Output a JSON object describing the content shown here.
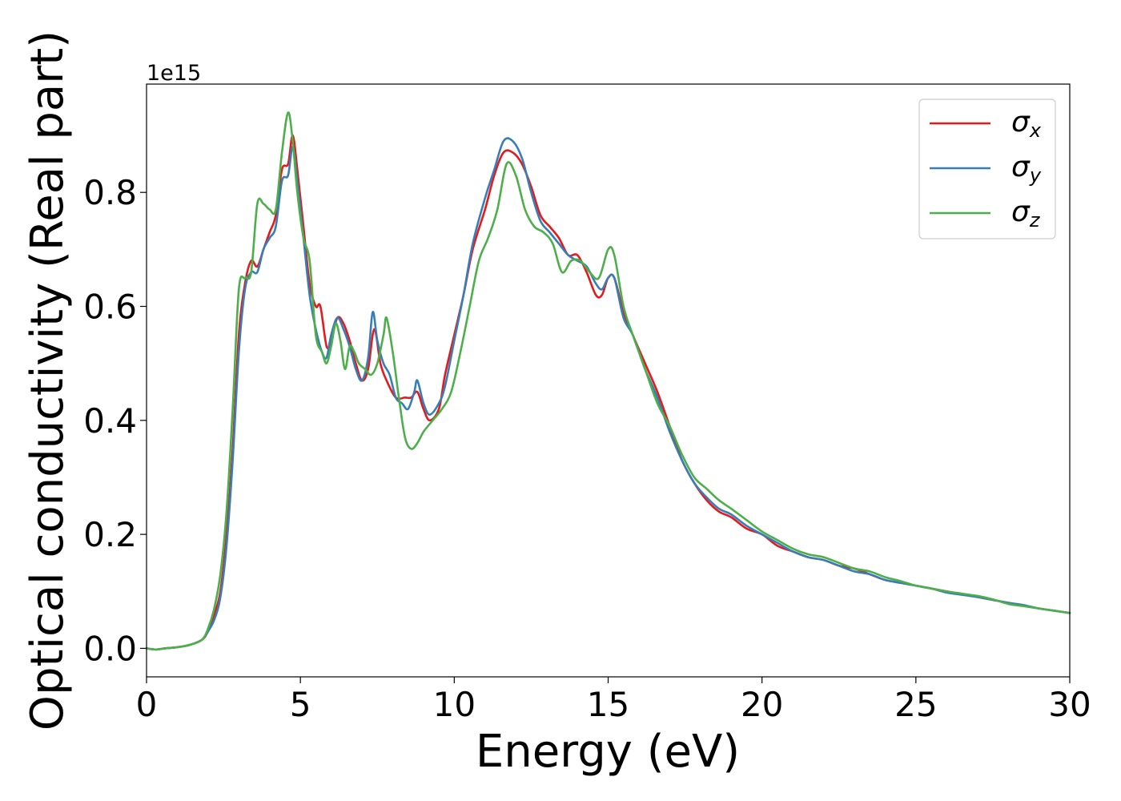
{
  "chart_data": {
    "type": "line",
    "title": "",
    "xlabel": "Energy (eV)",
    "ylabel": "Optical conductivity (Real part)",
    "offset_text": "1e15",
    "xlim": [
      0,
      30
    ],
    "ylim": [
      -0.05,
      0.99
    ],
    "x_ticks": [
      0,
      5,
      10,
      15,
      20,
      25,
      30
    ],
    "y_ticks": [
      0.0,
      0.2,
      0.4,
      0.6,
      0.8
    ],
    "x_tick_labels": [
      "0",
      "5",
      "10",
      "15",
      "20",
      "25",
      "30"
    ],
    "y_tick_labels": [
      "0.0",
      "0.2",
      "0.4",
      "0.6",
      "0.8"
    ],
    "grid": false,
    "legend_position": "top-right",
    "series": [
      {
        "name": "σx",
        "legend_symbol": "σ",
        "legend_sub": "x",
        "color": "#e41a1c",
        "points": [
          [
            0,
            0.0
          ],
          [
            0.3,
            -0.002
          ],
          [
            0.6,
            0.0
          ],
          [
            1,
            0.002
          ],
          [
            1.4,
            0.006
          ],
          [
            1.8,
            0.015
          ],
          [
            2.0,
            0.03
          ],
          [
            2.2,
            0.06
          ],
          [
            2.4,
            0.1
          ],
          [
            2.6,
            0.2
          ],
          [
            2.8,
            0.35
          ],
          [
            3.0,
            0.55
          ],
          [
            3.2,
            0.64
          ],
          [
            3.4,
            0.68
          ],
          [
            3.6,
            0.67
          ],
          [
            3.8,
            0.7
          ],
          [
            4.0,
            0.73
          ],
          [
            4.2,
            0.76
          ],
          [
            4.4,
            0.84
          ],
          [
            4.6,
            0.85
          ],
          [
            4.75,
            0.9
          ],
          [
            4.9,
            0.84
          ],
          [
            5.1,
            0.74
          ],
          [
            5.3,
            0.64
          ],
          [
            5.5,
            0.6
          ],
          [
            5.65,
            0.6
          ],
          [
            5.85,
            0.53
          ],
          [
            6.0,
            0.54
          ],
          [
            6.2,
            0.58
          ],
          [
            6.4,
            0.57
          ],
          [
            6.6,
            0.54
          ],
          [
            6.8,
            0.5
          ],
          [
            7.0,
            0.47
          ],
          [
            7.2,
            0.49
          ],
          [
            7.4,
            0.56
          ],
          [
            7.6,
            0.5
          ],
          [
            7.8,
            0.47
          ],
          [
            8.1,
            0.44
          ],
          [
            8.4,
            0.44
          ],
          [
            8.6,
            0.44
          ],
          [
            8.8,
            0.45
          ],
          [
            9.0,
            0.42
          ],
          [
            9.2,
            0.4
          ],
          [
            9.5,
            0.42
          ],
          [
            9.7,
            0.48
          ],
          [
            10.0,
            0.55
          ],
          [
            10.3,
            0.62
          ],
          [
            10.6,
            0.7
          ],
          [
            11.0,
            0.77
          ],
          [
            11.3,
            0.83
          ],
          [
            11.6,
            0.87
          ],
          [
            11.9,
            0.87
          ],
          [
            12.2,
            0.85
          ],
          [
            12.5,
            0.81
          ],
          [
            12.8,
            0.76
          ],
          [
            13.1,
            0.74
          ],
          [
            13.4,
            0.72
          ],
          [
            13.7,
            0.69
          ],
          [
            14.0,
            0.69
          ],
          [
            14.3,
            0.66
          ],
          [
            14.6,
            0.62
          ],
          [
            14.8,
            0.62
          ],
          [
            15.0,
            0.65
          ],
          [
            15.2,
            0.65
          ],
          [
            15.5,
            0.59
          ],
          [
            15.8,
            0.55
          ],
          [
            16.2,
            0.5
          ],
          [
            16.6,
            0.45
          ],
          [
            17.0,
            0.39
          ],
          [
            17.4,
            0.33
          ],
          [
            17.8,
            0.29
          ],
          [
            18.2,
            0.26
          ],
          [
            18.6,
            0.24
          ],
          [
            19.0,
            0.23
          ],
          [
            19.5,
            0.21
          ],
          [
            20.0,
            0.2
          ],
          [
            20.5,
            0.18
          ],
          [
            21.0,
            0.17
          ],
          [
            21.5,
            0.16
          ],
          [
            22.0,
            0.155
          ],
          [
            22.5,
            0.145
          ],
          [
            23.0,
            0.14
          ],
          [
            23.5,
            0.13
          ],
          [
            24.0,
            0.12
          ],
          [
            24.5,
            0.115
          ],
          [
            25.0,
            0.11
          ],
          [
            25.5,
            0.105
          ],
          [
            26.0,
            0.1
          ],
          [
            26.5,
            0.095
          ],
          [
            27.0,
            0.09
          ],
          [
            27.5,
            0.085
          ],
          [
            28.0,
            0.08
          ],
          [
            28.5,
            0.075
          ],
          [
            29.0,
            0.07
          ],
          [
            29.5,
            0.066
          ],
          [
            30.0,
            0.062
          ]
        ]
      },
      {
        "name": "σy",
        "legend_symbol": "σ",
        "legend_sub": "y",
        "color": "#377eb8",
        "points": [
          [
            0,
            0.0
          ],
          [
            0.3,
            -0.002
          ],
          [
            0.6,
            0.0
          ],
          [
            1,
            0.002
          ],
          [
            1.4,
            0.006
          ],
          [
            1.8,
            0.015
          ],
          [
            2.0,
            0.03
          ],
          [
            2.2,
            0.05
          ],
          [
            2.4,
            0.09
          ],
          [
            2.6,
            0.18
          ],
          [
            2.8,
            0.33
          ],
          [
            3.0,
            0.52
          ],
          [
            3.2,
            0.63
          ],
          [
            3.4,
            0.66
          ],
          [
            3.6,
            0.66
          ],
          [
            3.8,
            0.7
          ],
          [
            4.0,
            0.72
          ],
          [
            4.2,
            0.74
          ],
          [
            4.4,
            0.82
          ],
          [
            4.6,
            0.83
          ],
          [
            4.75,
            0.88
          ],
          [
            4.9,
            0.82
          ],
          [
            5.1,
            0.72
          ],
          [
            5.3,
            0.62
          ],
          [
            5.5,
            0.56
          ],
          [
            5.7,
            0.52
          ],
          [
            5.85,
            0.51
          ],
          [
            6.0,
            0.55
          ],
          [
            6.2,
            0.58
          ],
          [
            6.4,
            0.56
          ],
          [
            6.6,
            0.53
          ],
          [
            6.8,
            0.49
          ],
          [
            7.0,
            0.47
          ],
          [
            7.2,
            0.51
          ],
          [
            7.35,
            0.59
          ],
          [
            7.5,
            0.54
          ],
          [
            7.7,
            0.5
          ],
          [
            7.9,
            0.48
          ],
          [
            8.1,
            0.44
          ],
          [
            8.3,
            0.43
          ],
          [
            8.5,
            0.42
          ],
          [
            8.7,
            0.45
          ],
          [
            8.8,
            0.47
          ],
          [
            9.0,
            0.43
          ],
          [
            9.2,
            0.41
          ],
          [
            9.5,
            0.43
          ],
          [
            9.7,
            0.46
          ],
          [
            10.0,
            0.54
          ],
          [
            10.3,
            0.62
          ],
          [
            10.6,
            0.71
          ],
          [
            11.0,
            0.79
          ],
          [
            11.3,
            0.84
          ],
          [
            11.6,
            0.89
          ],
          [
            11.9,
            0.89
          ],
          [
            12.2,
            0.86
          ],
          [
            12.5,
            0.8
          ],
          [
            12.8,
            0.75
          ],
          [
            13.1,
            0.73
          ],
          [
            13.4,
            0.71
          ],
          [
            13.7,
            0.69
          ],
          [
            14.0,
            0.68
          ],
          [
            14.3,
            0.67
          ],
          [
            14.6,
            0.64
          ],
          [
            14.8,
            0.63
          ],
          [
            15.0,
            0.65
          ],
          [
            15.2,
            0.65
          ],
          [
            15.5,
            0.58
          ],
          [
            15.8,
            0.55
          ],
          [
            16.2,
            0.49
          ],
          [
            16.6,
            0.44
          ],
          [
            17.0,
            0.38
          ],
          [
            17.4,
            0.33
          ],
          [
            17.8,
            0.29
          ],
          [
            18.2,
            0.265
          ],
          [
            18.6,
            0.245
          ],
          [
            19.0,
            0.235
          ],
          [
            19.5,
            0.215
          ],
          [
            20.0,
            0.2
          ],
          [
            20.5,
            0.185
          ],
          [
            21.0,
            0.17
          ],
          [
            21.5,
            0.16
          ],
          [
            22.0,
            0.155
          ],
          [
            22.5,
            0.145
          ],
          [
            23.0,
            0.135
          ],
          [
            23.5,
            0.13
          ],
          [
            24.0,
            0.12
          ],
          [
            24.5,
            0.115
          ],
          [
            25.0,
            0.11
          ],
          [
            25.5,
            0.105
          ],
          [
            26.0,
            0.098
          ],
          [
            26.5,
            0.094
          ],
          [
            27.0,
            0.09
          ],
          [
            27.5,
            0.085
          ],
          [
            28.0,
            0.08
          ],
          [
            28.5,
            0.076
          ],
          [
            29.0,
            0.07
          ],
          [
            29.5,
            0.066
          ],
          [
            30.0,
            0.062
          ]
        ]
      },
      {
        "name": "σz",
        "legend_symbol": "σ",
        "legend_sub": "z",
        "color": "#4daf4a",
        "points": [
          [
            0,
            0.0
          ],
          [
            0.3,
            -0.002
          ],
          [
            0.6,
            0.0
          ],
          [
            1,
            0.002
          ],
          [
            1.4,
            0.006
          ],
          [
            1.8,
            0.015
          ],
          [
            2.0,
            0.035
          ],
          [
            2.2,
            0.07
          ],
          [
            2.4,
            0.13
          ],
          [
            2.6,
            0.24
          ],
          [
            2.8,
            0.42
          ],
          [
            3.0,
            0.63
          ],
          [
            3.2,
            0.65
          ],
          [
            3.4,
            0.66
          ],
          [
            3.6,
            0.78
          ],
          [
            3.8,
            0.78
          ],
          [
            4.0,
            0.77
          ],
          [
            4.2,
            0.77
          ],
          [
            4.4,
            0.87
          ],
          [
            4.6,
            0.94
          ],
          [
            4.75,
            0.89
          ],
          [
            4.9,
            0.8
          ],
          [
            5.1,
            0.72
          ],
          [
            5.3,
            0.68
          ],
          [
            5.5,
            0.55
          ],
          [
            5.7,
            0.52
          ],
          [
            5.85,
            0.5
          ],
          [
            6.0,
            0.53
          ],
          [
            6.15,
            0.57
          ],
          [
            6.3,
            0.54
          ],
          [
            6.45,
            0.49
          ],
          [
            6.6,
            0.53
          ],
          [
            6.75,
            0.52
          ],
          [
            6.9,
            0.5
          ],
          [
            7.1,
            0.49
          ],
          [
            7.3,
            0.48
          ],
          [
            7.5,
            0.5
          ],
          [
            7.7,
            0.55
          ],
          [
            7.8,
            0.58
          ],
          [
            8.0,
            0.52
          ],
          [
            8.2,
            0.44
          ],
          [
            8.4,
            0.37
          ],
          [
            8.6,
            0.35
          ],
          [
            8.8,
            0.36
          ],
          [
            9.0,
            0.38
          ],
          [
            9.3,
            0.4
          ],
          [
            9.6,
            0.42
          ],
          [
            9.9,
            0.45
          ],
          [
            10.2,
            0.52
          ],
          [
            10.5,
            0.6
          ],
          [
            10.8,
            0.68
          ],
          [
            11.1,
            0.72
          ],
          [
            11.4,
            0.77
          ],
          [
            11.7,
            0.85
          ],
          [
            12.0,
            0.83
          ],
          [
            12.3,
            0.77
          ],
          [
            12.6,
            0.74
          ],
          [
            12.9,
            0.73
          ],
          [
            13.2,
            0.71
          ],
          [
            13.5,
            0.66
          ],
          [
            13.8,
            0.68
          ],
          [
            14.1,
            0.68
          ],
          [
            14.4,
            0.66
          ],
          [
            14.7,
            0.65
          ],
          [
            15.0,
            0.7
          ],
          [
            15.2,
            0.69
          ],
          [
            15.5,
            0.6
          ],
          [
            15.8,
            0.55
          ],
          [
            16.2,
            0.49
          ],
          [
            16.6,
            0.43
          ],
          [
            17.0,
            0.39
          ],
          [
            17.4,
            0.34
          ],
          [
            17.8,
            0.3
          ],
          [
            18.2,
            0.28
          ],
          [
            18.6,
            0.26
          ],
          [
            19.0,
            0.245
          ],
          [
            19.5,
            0.225
          ],
          [
            20.0,
            0.205
          ],
          [
            20.5,
            0.19
          ],
          [
            21.0,
            0.175
          ],
          [
            21.5,
            0.165
          ],
          [
            22.0,
            0.16
          ],
          [
            22.5,
            0.15
          ],
          [
            23.0,
            0.14
          ],
          [
            23.5,
            0.135
          ],
          [
            24.0,
            0.125
          ],
          [
            24.5,
            0.118
          ],
          [
            25.0,
            0.11
          ],
          [
            25.5,
            0.105
          ],
          [
            26.0,
            0.1
          ],
          [
            26.5,
            0.096
          ],
          [
            27.0,
            0.092
          ],
          [
            27.5,
            0.086
          ],
          [
            28.0,
            0.078
          ],
          [
            28.5,
            0.074
          ],
          [
            29.0,
            0.07
          ],
          [
            29.5,
            0.066
          ],
          [
            30.0,
            0.062
          ]
        ]
      }
    ]
  }
}
